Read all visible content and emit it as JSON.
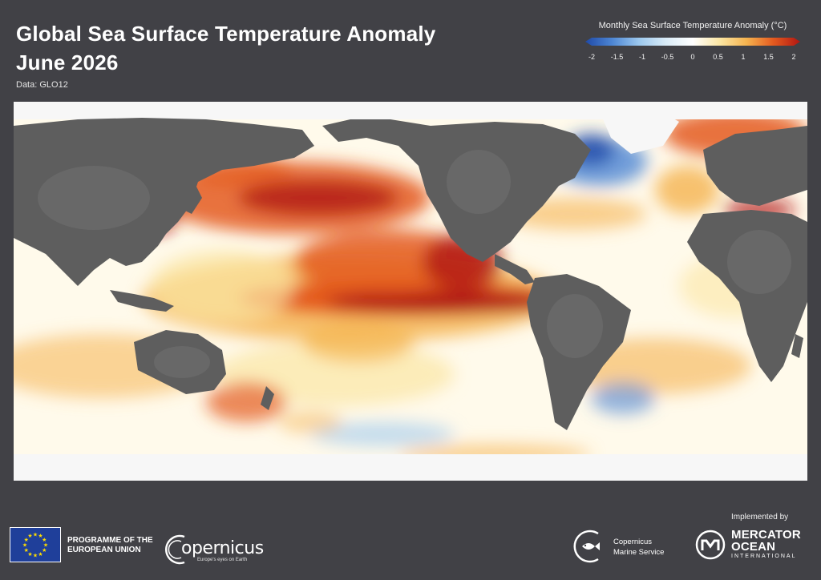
{
  "header": {
    "title_line1": "Global Sea Surface Temperature Anomaly",
    "title_line2": "June 2026",
    "subtitle": "Data: GLO12"
  },
  "legend": {
    "title": "Monthly Sea Surface Temperature Anomaly (°C)",
    "min": -2,
    "max": 2,
    "ticks": [
      "-2",
      "-1.5",
      "-1",
      "-0.5",
      "0",
      "0.5",
      "1",
      "1.5",
      "2"
    ],
    "tick_values": [
      -2,
      -1.5,
      -1,
      -0.5,
      0,
      0.5,
      1,
      1.5,
      2
    ],
    "colors": [
      "#1f4aa8",
      "#4d86d4",
      "#9cc8ee",
      "#d9ebf7",
      "#ffffff",
      "#fbe6a4",
      "#f5b34f",
      "#e45a1f",
      "#b01612"
    ]
  },
  "map_colors": {
    "land": "#5e5e5e",
    "ice": "#f7f7f7",
    "ocean_neutral": "#fffaeb"
  },
  "footer": {
    "eu_line1": "PROGRAMME OF THE",
    "eu_line2": "EUROPEAN UNION",
    "copernicus_word": "opernicus",
    "copernicus_tagline": "Europe's eyes on Earth",
    "cms_line1": "Copernicus",
    "cms_line2": "Marine Service",
    "implemented_by": "Implemented by",
    "mercator_line1": "MERCATOR",
    "mercator_line2": "OCEAN",
    "mercator_line3": "INTERNATIONAL"
  }
}
